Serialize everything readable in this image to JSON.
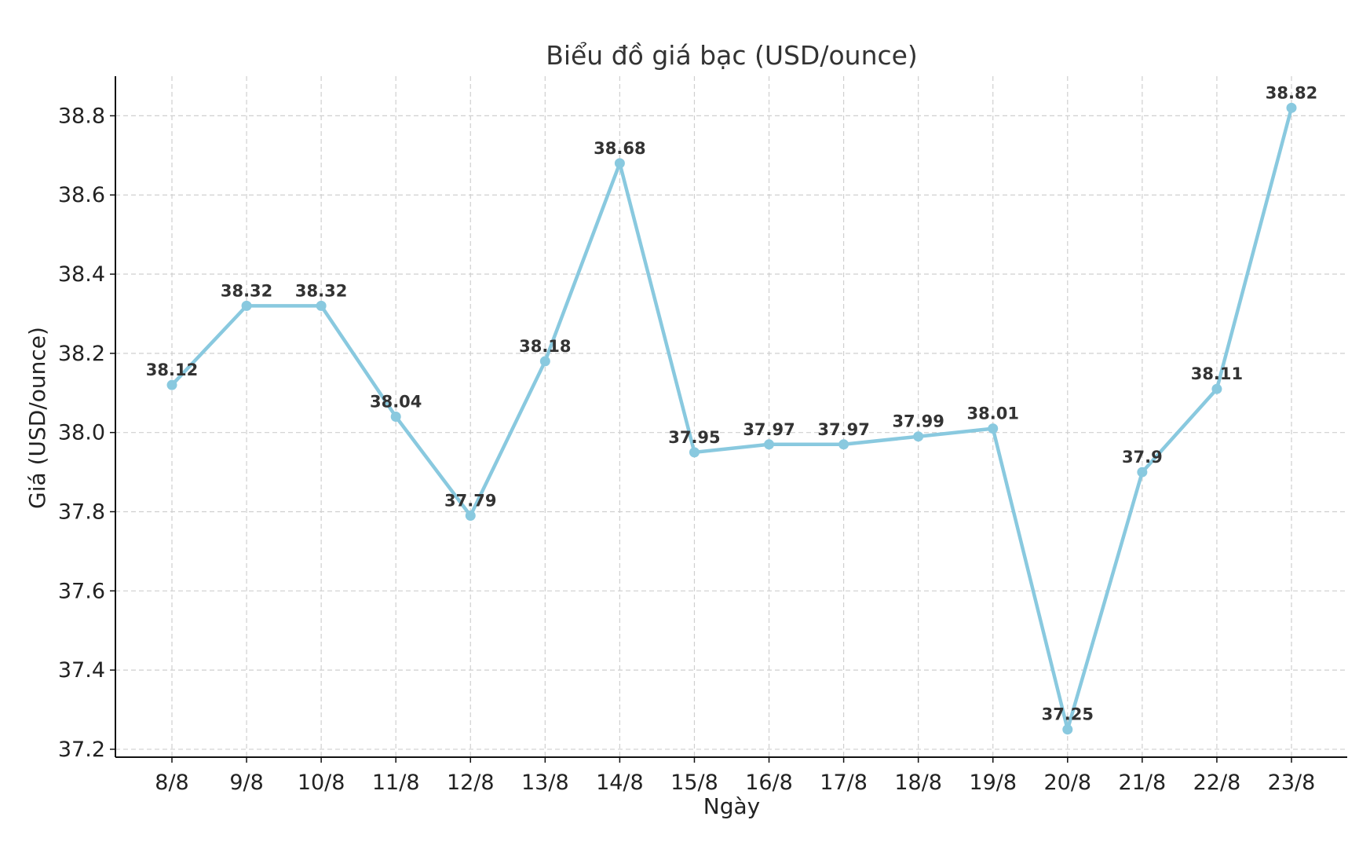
{
  "chart_data": {
    "type": "line",
    "title": "Biểu đồ giá bạc (USD/ounce)",
    "xlabel": "Ngày",
    "ylabel": "Giá (USD/ounce)",
    "categories": [
      "8/8",
      "9/8",
      "10/8",
      "11/8",
      "12/8",
      "13/8",
      "14/8",
      "15/8",
      "16/8",
      "17/8",
      "18/8",
      "19/8",
      "20/8",
      "21/8",
      "22/8",
      "23/8"
    ],
    "series": [
      {
        "values": [
          38.12,
          38.32,
          38.32,
          38.04,
          37.79,
          38.18,
          38.68,
          37.95,
          37.97,
          37.97,
          37.99,
          38.01,
          37.25,
          37.9,
          38.11,
          38.82
        ],
        "data_labels": [
          "38.12",
          "38.32",
          "38.32",
          "38.04",
          "37.79",
          "38.18",
          "38.68",
          "37.95",
          "37.97",
          "37.97",
          "37.99",
          "38.01",
          "37.25",
          "37.9",
          "38.11",
          "38.82"
        ],
        "color": "#89c9df"
      }
    ],
    "yticks": [
      "37.2",
      "37.4",
      "37.6",
      "37.8",
      "38.0",
      "38.2",
      "38.4",
      "38.6",
      "38.8"
    ],
    "ylim": [
      37.18,
      38.9
    ],
    "grid": true,
    "marker": "circle"
  }
}
